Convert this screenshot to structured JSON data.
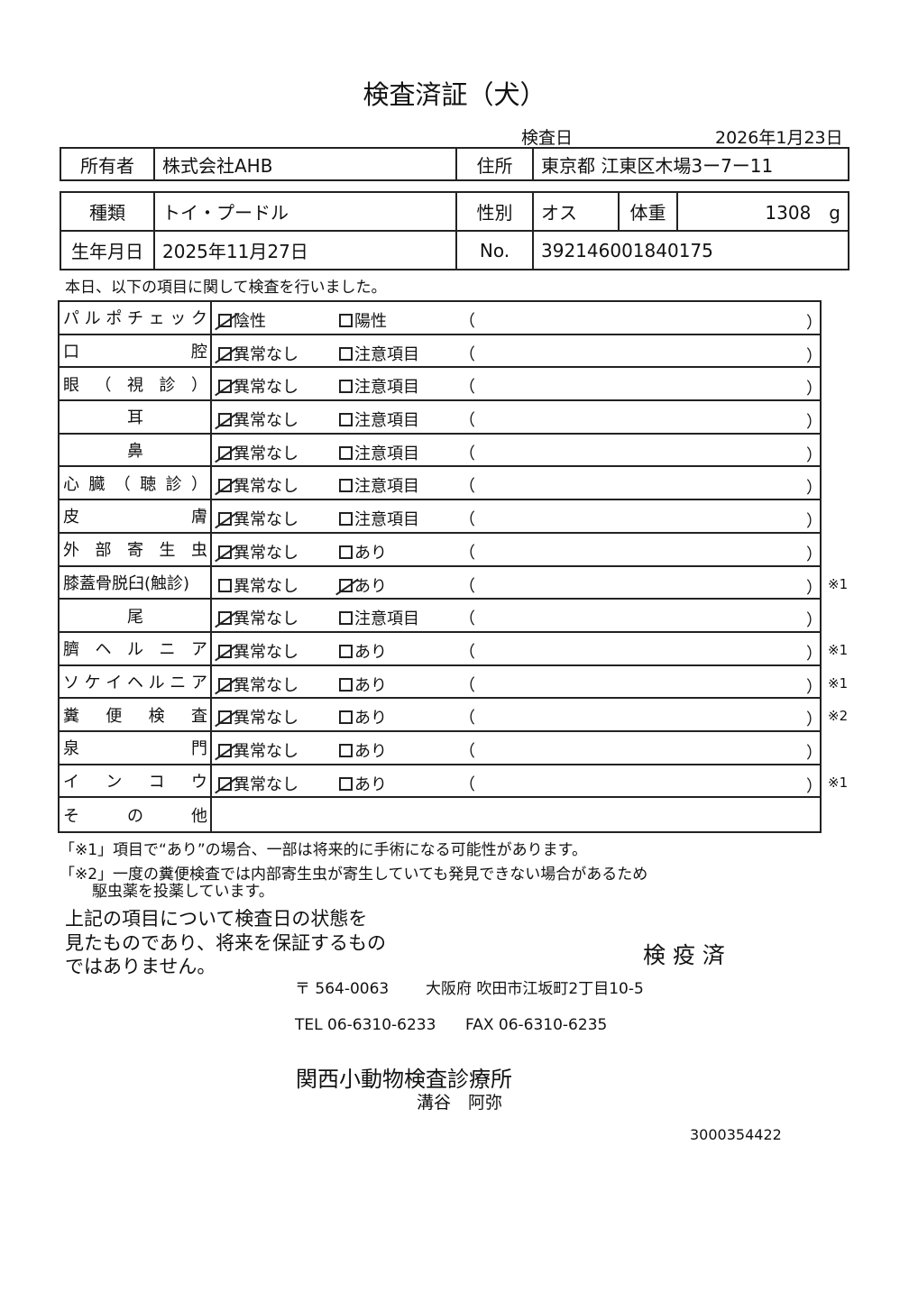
{
  "title": "検査済証（犬）",
  "exam_date_label": "検査日",
  "exam_date": "2026年1月23日",
  "owner": {
    "label": "所有者",
    "value": "株式会社AHB",
    "address_label": "住所",
    "address": "東京都 江東区木場3ー7ー11"
  },
  "pet": {
    "breed_label": "種類",
    "breed": "トイ・プードル",
    "sex_label": "性別",
    "sex": "オス",
    "weight_label": "体重",
    "weight": "1308　g",
    "birth_label": "生年月日",
    "birth": "2025年11月27日",
    "no_label": "No.",
    "no": "392146001840175"
  },
  "intro": "本日、以下の項目に関して検査を行いました。",
  "rows": [
    {
      "label": [
        "パ",
        "ル",
        "ポ",
        "チ",
        "ェ",
        "ッ",
        "ク"
      ],
      "opt1": "陰性",
      "opt2": "陽性",
      "checked": 1,
      "note": ""
    },
    {
      "label": [
        "口",
        "腔"
      ],
      "opt1": "異常なし",
      "opt2": "注意項目",
      "checked": 1,
      "note": ""
    },
    {
      "label": [
        "眼",
        "（",
        "視",
        "診",
        "）"
      ],
      "opt1": "異常なし",
      "opt2": "注意項目",
      "checked": 1,
      "note": ""
    },
    {
      "label": [
        "耳"
      ],
      "center": true,
      "opt1": "異常なし",
      "opt2": "注意項目",
      "checked": 1,
      "note": ""
    },
    {
      "label": [
        "鼻"
      ],
      "center": true,
      "opt1": "異常なし",
      "opt2": "注意項目",
      "checked": 1,
      "note": ""
    },
    {
      "label": [
        "心",
        "臓",
        "（",
        "聴",
        "診",
        "）"
      ],
      "opt1": "異常なし",
      "opt2": "注意項目",
      "checked": 1,
      "note": ""
    },
    {
      "label": [
        "皮",
        "膚"
      ],
      "opt1": "異常なし",
      "opt2": "注意項目",
      "checked": 1,
      "note": ""
    },
    {
      "label": [
        "外",
        "部",
        "寄",
        "生",
        "虫"
      ],
      "opt1": "異常なし",
      "opt2": "あり",
      "checked": 1,
      "note": ""
    },
    {
      "label": [
        "膝蓋骨脱臼(触診)"
      ],
      "opt1": "異常なし",
      "opt2": "あり",
      "checked": 2,
      "note": "※1"
    },
    {
      "label": [
        "尾"
      ],
      "center": true,
      "opt1": "異常なし",
      "opt2": "注意項目",
      "checked": 1,
      "note": ""
    },
    {
      "label": [
        "臍",
        "ヘ",
        "ル",
        "ニ",
        "ア"
      ],
      "opt1": "異常なし",
      "opt2": "あり",
      "checked": 1,
      "note": "※1"
    },
    {
      "label": [
        "ソ",
        "ケ",
        "イ",
        "ヘ",
        "ル",
        "ニ",
        "ア"
      ],
      "opt1": "異常なし",
      "opt2": "あり",
      "checked": 1,
      "note": "※1"
    },
    {
      "label": [
        "糞",
        "便",
        "検",
        "査"
      ],
      "opt1": "異常なし",
      "opt2": "あり",
      "checked": 1,
      "note": "※2"
    },
    {
      "label": [
        "泉",
        "門"
      ],
      "opt1": "異常なし",
      "opt2": "あり",
      "checked": 1,
      "note": ""
    },
    {
      "label": [
        "イ",
        "ン",
        "コ",
        "ウ"
      ],
      "opt1": "異常なし",
      "opt2": "あり",
      "checked": 1,
      "note": "※1"
    }
  ],
  "other_label": [
    "そ",
    "の",
    "他"
  ],
  "paren_open": "（",
  "paren_close": "）",
  "notes": [
    "「※1」項目で“あり”の場合、一部は将来的に手術になる可能性があります。",
    "「※2」一度の糞便検査では内部寄生虫が寄生していても発見できない場合があるため",
    "駆虫薬を投薬しています。"
  ],
  "statement": [
    "上記の項目について検査日の状態を",
    "見たものであり、将来を保証するもの",
    "ではありません。"
  ],
  "stamp": "検 疫 済",
  "clinic": {
    "postal": "〒 564-0063",
    "address": "大阪府 吹田市江坂町2丁目10-5",
    "tel": "TEL 06-6310-6233",
    "fax": "FAX 06-6310-6235",
    "name": "関西小動物検査診療所",
    "person": "溝谷　阿弥",
    "code": "3000354422"
  }
}
